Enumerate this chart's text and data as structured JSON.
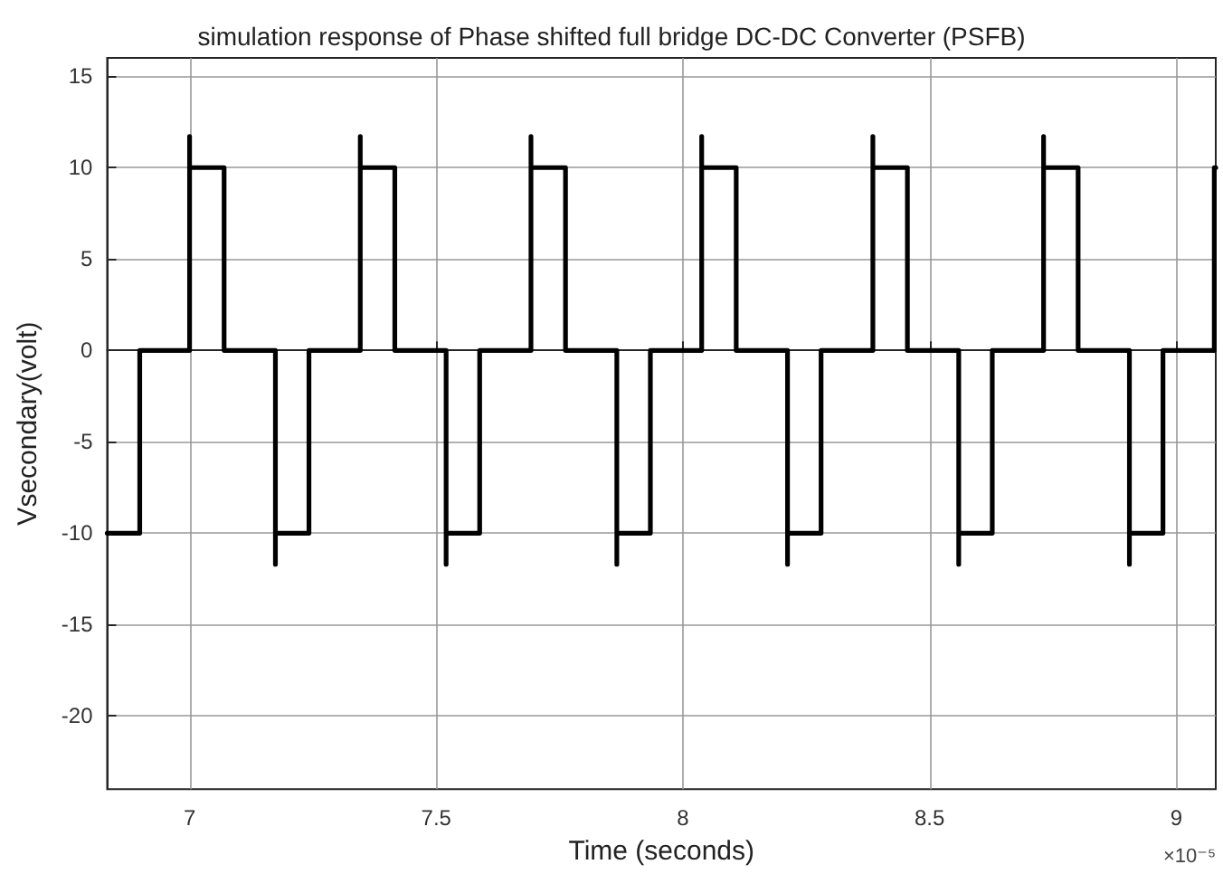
{
  "chart_data": {
    "type": "line",
    "title": "simulation response of Phase shifted full bridge DC-DC Converter (PSFB)",
    "xlabel": "Time (seconds)",
    "ylabel": "Vsecondary(volt)",
    "annotations": [
      "×10⁻⁵"
    ],
    "series": [
      {
        "color": "#000000",
        "x": [
          6.833,
          6.899,
          6.899,
          7.0,
          7.0,
          7.0,
          7.07,
          7.07,
          7.174,
          7.174,
          7.174,
          7.242,
          7.242,
          7.346,
          7.346,
          7.346,
          7.416,
          7.416,
          7.52,
          7.52,
          7.52,
          7.588,
          7.588,
          7.692,
          7.692,
          7.692,
          7.762,
          7.762,
          7.866,
          7.866,
          7.866,
          7.934,
          7.934,
          8.038,
          8.038,
          8.038,
          8.108,
          8.108,
          8.212,
          8.212,
          8.212,
          8.28,
          8.28,
          8.385,
          8.385,
          8.385,
          8.455,
          8.455,
          8.559,
          8.559,
          8.559,
          8.627,
          8.627,
          8.731,
          8.731,
          8.731,
          8.801,
          8.801,
          8.905,
          8.905,
          8.905,
          8.973,
          8.973,
          9.077,
          9.077,
          9.08
        ],
        "values": [
          -10,
          -10,
          0,
          0,
          11.7,
          10,
          10,
          0,
          0,
          -11.7,
          -10,
          -10,
          0,
          0,
          11.7,
          10,
          10,
          0,
          0,
          -11.7,
          -10,
          -10,
          0,
          0,
          11.7,
          10,
          10,
          0,
          0,
          -11.7,
          -10,
          -10,
          0,
          0,
          11.7,
          10,
          10,
          0,
          0,
          -11.7,
          -10,
          -10,
          0,
          0,
          11.7,
          10,
          10,
          0,
          0,
          -11.7,
          -10,
          -10,
          0,
          0,
          11.7,
          10,
          10,
          0,
          0,
          -11.7,
          -10,
          -10,
          0,
          0,
          10,
          10
        ]
      }
    ],
    "xlim": [
      6.833,
      9.08
    ],
    "xticks": [
      7,
      7.5,
      8,
      8.5,
      9
    ],
    "ylim": [
      -24,
      16
    ],
    "yticks": [
      -20,
      -15,
      -10,
      -5,
      0,
      5,
      10,
      15
    ],
    "grid": true,
    "marker": "none",
    "line_style": "solid"
  }
}
